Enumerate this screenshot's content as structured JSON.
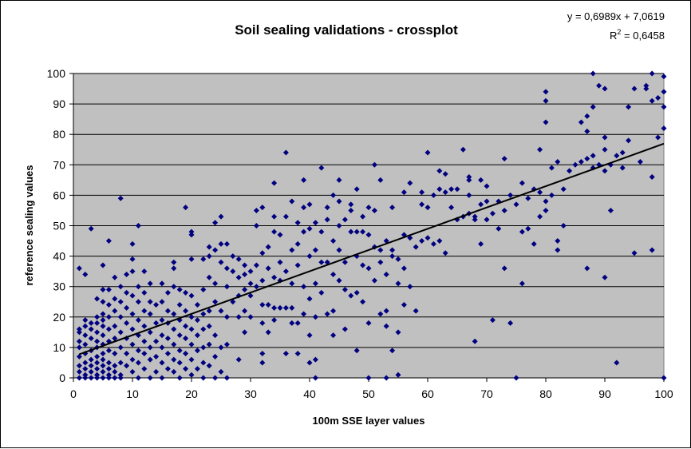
{
  "chart_data": {
    "type": "scatter",
    "title": "Soil sealing validations - crossplot",
    "xlabel": "100m SSE layer values",
    "ylabel": "reference sealing values",
    "xlim": [
      0,
      100
    ],
    "ylim": [
      0,
      100
    ],
    "x_ticks": [
      "0",
      "10",
      "20",
      "30",
      "40",
      "50",
      "60",
      "70",
      "80",
      "90",
      "100"
    ],
    "y_ticks": [
      "0",
      "10",
      "20",
      "30",
      "40",
      "50",
      "60",
      "70",
      "80",
      "90",
      "100"
    ],
    "grid": "horizontal",
    "background_color": "#c0c0c0",
    "marker_color": "#000080",
    "trendline": {
      "slope": 0.6989,
      "intercept": 7.0619,
      "equation_label": "y = 0,6989x + 7,0619",
      "r2_label": "R",
      "r2_superscript": "2",
      "r2_value": " = 0,6458"
    },
    "points": [
      [
        1,
        0
      ],
      [
        1,
        2
      ],
      [
        1,
        4
      ],
      [
        1,
        7
      ],
      [
        1,
        10
      ],
      [
        1,
        12
      ],
      [
        1,
        15
      ],
      [
        1,
        16
      ],
      [
        1,
        36
      ],
      [
        2,
        0
      ],
      [
        2,
        1
      ],
      [
        2,
        3
      ],
      [
        2,
        5
      ],
      [
        2,
        8
      ],
      [
        2,
        11
      ],
      [
        2,
        14
      ],
      [
        2,
        17
      ],
      [
        2,
        19
      ],
      [
        2,
        34
      ],
      [
        3,
        0
      ],
      [
        3,
        2
      ],
      [
        3,
        4
      ],
      [
        3,
        6
      ],
      [
        3,
        9
      ],
      [
        3,
        13
      ],
      [
        3,
        16
      ],
      [
        3,
        18
      ],
      [
        3,
        49
      ],
      [
        4,
        0
      ],
      [
        4,
        1
      ],
      [
        4,
        3
      ],
      [
        4,
        5
      ],
      [
        4,
        7
      ],
      [
        4,
        10
      ],
      [
        4,
        12
      ],
      [
        4,
        15
      ],
      [
        4,
        18
      ],
      [
        4,
        20
      ],
      [
        4,
        26
      ],
      [
        5,
        0
      ],
      [
        5,
        2
      ],
      [
        5,
        4
      ],
      [
        5,
        6
      ],
      [
        5,
        8
      ],
      [
        5,
        11
      ],
      [
        5,
        14
      ],
      [
        5,
        17
      ],
      [
        5,
        19
      ],
      [
        5,
        21
      ],
      [
        5,
        25
      ],
      [
        5,
        29
      ],
      [
        5,
        37
      ],
      [
        6,
        0
      ],
      [
        6,
        1
      ],
      [
        6,
        3
      ],
      [
        6,
        5
      ],
      [
        6,
        9
      ],
      [
        6,
        12
      ],
      [
        6,
        16
      ],
      [
        6,
        20
      ],
      [
        6,
        24
      ],
      [
        6,
        29
      ],
      [
        6,
        45
      ],
      [
        7,
        0
      ],
      [
        7,
        2
      ],
      [
        7,
        4
      ],
      [
        7,
        8
      ],
      [
        7,
        13
      ],
      [
        7,
        17
      ],
      [
        7,
        22
      ],
      [
        7,
        26
      ],
      [
        7,
        33
      ],
      [
        8,
        0
      ],
      [
        8,
        1
      ],
      [
        8,
        5
      ],
      [
        8,
        10
      ],
      [
        8,
        15
      ],
      [
        8,
        20
      ],
      [
        8,
        25
      ],
      [
        8,
        30
      ],
      [
        8,
        59
      ],
      [
        9,
        4
      ],
      [
        9,
        8
      ],
      [
        9,
        13
      ],
      [
        9,
        18
      ],
      [
        9,
        23
      ],
      [
        9,
        28
      ],
      [
        9,
        34
      ],
      [
        10,
        2
      ],
      [
        10,
        6
      ],
      [
        10,
        11
      ],
      [
        10,
        16
      ],
      [
        10,
        21
      ],
      [
        10,
        27
      ],
      [
        10,
        35
      ],
      [
        10,
        39
      ],
      [
        10,
        44
      ],
      [
        11,
        0
      ],
      [
        11,
        5
      ],
      [
        11,
        9
      ],
      [
        11,
        14
      ],
      [
        11,
        19
      ],
      [
        11,
        25
      ],
      [
        11,
        30
      ],
      [
        11,
        50
      ],
      [
        12,
        3
      ],
      [
        12,
        8
      ],
      [
        12,
        12
      ],
      [
        12,
        17
      ],
      [
        12,
        22
      ],
      [
        12,
        28
      ],
      [
        12,
        35
      ],
      [
        13,
        0
      ],
      [
        13,
        6
      ],
      [
        13,
        10
      ],
      [
        13,
        15
      ],
      [
        13,
        21
      ],
      [
        13,
        25
      ],
      [
        13,
        31
      ],
      [
        14,
        2
      ],
      [
        14,
        7
      ],
      [
        14,
        12
      ],
      [
        14,
        18
      ],
      [
        14,
        24
      ],
      [
        15,
        0
      ],
      [
        15,
        5
      ],
      [
        15,
        10
      ],
      [
        15,
        14
      ],
      [
        15,
        19
      ],
      [
        15,
        25
      ],
      [
        15,
        31
      ],
      [
        16,
        3
      ],
      [
        16,
        8
      ],
      [
        16,
        13
      ],
      [
        16,
        18
      ],
      [
        16,
        22
      ],
      [
        16,
        28
      ],
      [
        17,
        2
      ],
      [
        17,
        6
      ],
      [
        17,
        11
      ],
      [
        17,
        16
      ],
      [
        17,
        21
      ],
      [
        17,
        30
      ],
      [
        17,
        36
      ],
      [
        17,
        38
      ],
      [
        18,
        0
      ],
      [
        18,
        5
      ],
      [
        18,
        9
      ],
      [
        18,
        14
      ],
      [
        18,
        19
      ],
      [
        18,
        24
      ],
      [
        18,
        29
      ],
      [
        19,
        3
      ],
      [
        19,
        8
      ],
      [
        19,
        13
      ],
      [
        19,
        17
      ],
      [
        19,
        22
      ],
      [
        19,
        28
      ],
      [
        19,
        56
      ],
      [
        20,
        1
      ],
      [
        20,
        6
      ],
      [
        20,
        11
      ],
      [
        20,
        16
      ],
      [
        20,
        20
      ],
      [
        20,
        27
      ],
      [
        20,
        39
      ],
      [
        20,
        47
      ],
      [
        20,
        48
      ],
      [
        21,
        3
      ],
      [
        21,
        9
      ],
      [
        21,
        14
      ],
      [
        21,
        19
      ],
      [
        21,
        24
      ],
      [
        22,
        0
      ],
      [
        22,
        5
      ],
      [
        22,
        10
      ],
      [
        22,
        16
      ],
      [
        22,
        21
      ],
      [
        22,
        29
      ],
      [
        22,
        39
      ],
      [
        23,
        4
      ],
      [
        23,
        11
      ],
      [
        23,
        17
      ],
      [
        23,
        22
      ],
      [
        23,
        33
      ],
      [
        23,
        40
      ],
      [
        23,
        43
      ],
      [
        24,
        0
      ],
      [
        24,
        7
      ],
      [
        24,
        14
      ],
      [
        24,
        25
      ],
      [
        24,
        31
      ],
      [
        24,
        42
      ],
      [
        24,
        51
      ],
      [
        25,
        2
      ],
      [
        25,
        10
      ],
      [
        25,
        22
      ],
      [
        25,
        38
      ],
      [
        25,
        44
      ],
      [
        25,
        53
      ],
      [
        26,
        0
      ],
      [
        26,
        11
      ],
      [
        26,
        20
      ],
      [
        26,
        30
      ],
      [
        26,
        36
      ],
      [
        26,
        44
      ],
      [
        27,
        25
      ],
      [
        27,
        35
      ],
      [
        27,
        40
      ],
      [
        28,
        6
      ],
      [
        28,
        20
      ],
      [
        28,
        27
      ],
      [
        28,
        33
      ],
      [
        28,
        39
      ],
      [
        29,
        15
      ],
      [
        29,
        22
      ],
      [
        29,
        29
      ],
      [
        29,
        34
      ],
      [
        29,
        37
      ],
      [
        30,
        20
      ],
      [
        30,
        27
      ],
      [
        30,
        31
      ],
      [
        30,
        35
      ],
      [
        31,
        30
      ],
      [
        31,
        37
      ],
      [
        31,
        50
      ],
      [
        31,
        55
      ],
      [
        32,
        5
      ],
      [
        32,
        8
      ],
      [
        32,
        18
      ],
      [
        32,
        24
      ],
      [
        32,
        32
      ],
      [
        32,
        41
      ],
      [
        32,
        56
      ],
      [
        33,
        15
      ],
      [
        33,
        24
      ],
      [
        33,
        36
      ],
      [
        33,
        43
      ],
      [
        34,
        19
      ],
      [
        34,
        23
      ],
      [
        34,
        33
      ],
      [
        34,
        48
      ],
      [
        34,
        53
      ],
      [
        34,
        64
      ],
      [
        35,
        23
      ],
      [
        35,
        32
      ],
      [
        35,
        38
      ],
      [
        35,
        47
      ],
      [
        36,
        8
      ],
      [
        36,
        23
      ],
      [
        36,
        35
      ],
      [
        36,
        53
      ],
      [
        36,
        74
      ],
      [
        37,
        18
      ],
      [
        37,
        23
      ],
      [
        37,
        31
      ],
      [
        37,
        42
      ],
      [
        37,
        58
      ],
      [
        38,
        8
      ],
      [
        38,
        18
      ],
      [
        38,
        37
      ],
      [
        38,
        44
      ],
      [
        38,
        51
      ],
      [
        39,
        21
      ],
      [
        39,
        30
      ],
      [
        39,
        48
      ],
      [
        39,
        56
      ],
      [
        39,
        65
      ],
      [
        40,
        5
      ],
      [
        40,
        14
      ],
      [
        40,
        26
      ],
      [
        40,
        40
      ],
      [
        40,
        49
      ],
      [
        40,
        57
      ],
      [
        41,
        0
      ],
      [
        41,
        6
      ],
      [
        41,
        20
      ],
      [
        41,
        31
      ],
      [
        41,
        42
      ],
      [
        41,
        51
      ],
      [
        42,
        28
      ],
      [
        42,
        38
      ],
      [
        42,
        48
      ],
      [
        42,
        69
      ],
      [
        43,
        21
      ],
      [
        43,
        38
      ],
      [
        43,
        52
      ],
      [
        43,
        56
      ],
      [
        44,
        14
      ],
      [
        44,
        22
      ],
      [
        44,
        34
      ],
      [
        44,
        45
      ],
      [
        44,
        60
      ],
      [
        45,
        32
      ],
      [
        45,
        42
      ],
      [
        45,
        50
      ],
      [
        45,
        58
      ],
      [
        45,
        65
      ],
      [
        46,
        16
      ],
      [
        46,
        29
      ],
      [
        46,
        38
      ],
      [
        46,
        52
      ],
      [
        47,
        27
      ],
      [
        47,
        48
      ],
      [
        47,
        55
      ],
      [
        47,
        57
      ],
      [
        48,
        9
      ],
      [
        48,
        28
      ],
      [
        48,
        40
      ],
      [
        48,
        48
      ],
      [
        48,
        62
      ],
      [
        49,
        25
      ],
      [
        49,
        37
      ],
      [
        49,
        48
      ],
      [
        49,
        53
      ],
      [
        50,
        0
      ],
      [
        50,
        18
      ],
      [
        50,
        36
      ],
      [
        50,
        47
      ],
      [
        50,
        56
      ],
      [
        51,
        32
      ],
      [
        51,
        43
      ],
      [
        51,
        55
      ],
      [
        51,
        70
      ],
      [
        52,
        21
      ],
      [
        52,
        38
      ],
      [
        52,
        42
      ],
      [
        52,
        65
      ],
      [
        53,
        0
      ],
      [
        53,
        17
      ],
      [
        53,
        22
      ],
      [
        53,
        34
      ],
      [
        53,
        45
      ],
      [
        54,
        9
      ],
      [
        54,
        40
      ],
      [
        54,
        56
      ],
      [
        54,
        42
      ],
      [
        55,
        1
      ],
      [
        55,
        15
      ],
      [
        55,
        31
      ],
      [
        55,
        39
      ],
      [
        56,
        24
      ],
      [
        56,
        36
      ],
      [
        56,
        47
      ],
      [
        56,
        61
      ],
      [
        57,
        30
      ],
      [
        57,
        46
      ],
      [
        57,
        64
      ],
      [
        58,
        22
      ],
      [
        58,
        43
      ],
      [
        59,
        45
      ],
      [
        59,
        57
      ],
      [
        59,
        61
      ],
      [
        60,
        46
      ],
      [
        60,
        56
      ],
      [
        60,
        74
      ],
      [
        61,
        44
      ],
      [
        61,
        60
      ],
      [
        62,
        45
      ],
      [
        62,
        62
      ],
      [
        62,
        68
      ],
      [
        63,
        41
      ],
      [
        63,
        61
      ],
      [
        63,
        67
      ],
      [
        64,
        56
      ],
      [
        64,
        62
      ],
      [
        65,
        52
      ],
      [
        65,
        62
      ],
      [
        66,
        53
      ],
      [
        66,
        75
      ],
      [
        67,
        54
      ],
      [
        67,
        60
      ],
      [
        67,
        65
      ],
      [
        67,
        66
      ],
      [
        68,
        12
      ],
      [
        68,
        52
      ],
      [
        68,
        53
      ],
      [
        69,
        44
      ],
      [
        69,
        57
      ],
      [
        69,
        65
      ],
      [
        70,
        52
      ],
      [
        70,
        58
      ],
      [
        70,
        63
      ],
      [
        71,
        19
      ],
      [
        71,
        54
      ],
      [
        72,
        49
      ],
      [
        72,
        58
      ],
      [
        73,
        36
      ],
      [
        73,
        55
      ],
      [
        73,
        72
      ],
      [
        74,
        18
      ],
      [
        74,
        60
      ],
      [
        75,
        0
      ],
      [
        75,
        57
      ],
      [
        76,
        31
      ],
      [
        76,
        48
      ],
      [
        76,
        64
      ],
      [
        77,
        49
      ],
      [
        77,
        59
      ],
      [
        78,
        44
      ],
      [
        78,
        62
      ],
      [
        79,
        53
      ],
      [
        79,
        61
      ],
      [
        79,
        75
      ],
      [
        80,
        55
      ],
      [
        80,
        58
      ],
      [
        80,
        84
      ],
      [
        80,
        91
      ],
      [
        80,
        94
      ],
      [
        81,
        60
      ],
      [
        81,
        69
      ],
      [
        82,
        42
      ],
      [
        82,
        45
      ],
      [
        82,
        71
      ],
      [
        83,
        50
      ],
      [
        83,
        62
      ],
      [
        84,
        68
      ],
      [
        85,
        70
      ],
      [
        86,
        71
      ],
      [
        86,
        84
      ],
      [
        87,
        36
      ],
      [
        87,
        72
      ],
      [
        87,
        81
      ],
      [
        87,
        86
      ],
      [
        88,
        69
      ],
      [
        88,
        73
      ],
      [
        88,
        89
      ],
      [
        88,
        100
      ],
      [
        89,
        70
      ],
      [
        89,
        96
      ],
      [
        90,
        33
      ],
      [
        90,
        68
      ],
      [
        90,
        75
      ],
      [
        90,
        79
      ],
      [
        90,
        95
      ],
      [
        91,
        55
      ],
      [
        91,
        70
      ],
      [
        92,
        5
      ],
      [
        92,
        73
      ],
      [
        93,
        69
      ],
      [
        93,
        74
      ],
      [
        94,
        78
      ],
      [
        94,
        89
      ],
      [
        95,
        41
      ],
      [
        95,
        95
      ],
      [
        96,
        71
      ],
      [
        97,
        95
      ],
      [
        97,
        96
      ],
      [
        98,
        42
      ],
      [
        98,
        66
      ],
      [
        98,
        91
      ],
      [
        98,
        100
      ],
      [
        99,
        79
      ],
      [
        99,
        92
      ],
      [
        100,
        0
      ],
      [
        100,
        82
      ],
      [
        100,
        89
      ],
      [
        100,
        94
      ],
      [
        100,
        99
      ]
    ]
  }
}
